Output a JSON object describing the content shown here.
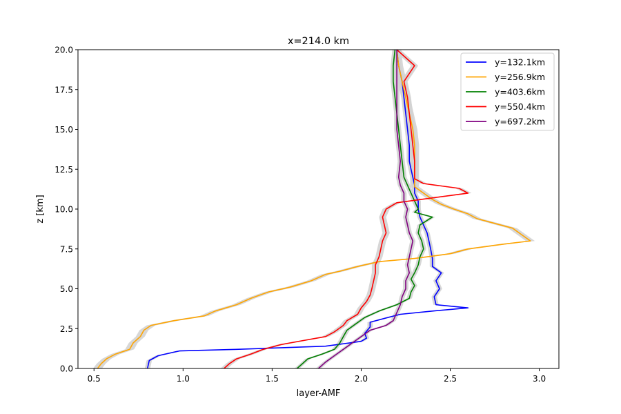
{
  "chart_data": {
    "type": "line",
    "title": "x=214.0 km",
    "xlabel": "layer-AMF",
    "ylabel": "z [km]",
    "xlim": [
      0.41,
      3.11
    ],
    "ylim": [
      0,
      20
    ],
    "xticks": [
      "0.5",
      "1.0",
      "1.5",
      "2.0",
      "2.5",
      "3.0"
    ],
    "yticks": [
      "0.0",
      "2.5",
      "5.0",
      "7.5",
      "10.0",
      "12.5",
      "15.0",
      "17.5",
      "20.0"
    ],
    "grid": false,
    "legend_position": "top-right",
    "band_color": "#d3d3d3",
    "series": [
      {
        "name": "y=132.1km",
        "color": "#0000ff",
        "points": [
          [
            0.8,
            0.0
          ],
          [
            0.81,
            0.5
          ],
          [
            0.86,
            0.8
          ],
          [
            0.98,
            1.1
          ],
          [
            1.3,
            1.2
          ],
          [
            1.8,
            1.4
          ],
          [
            2.0,
            1.7
          ],
          [
            2.03,
            1.9
          ],
          [
            2.02,
            2.2
          ],
          [
            2.05,
            2.6
          ],
          [
            2.05,
            2.9
          ],
          [
            2.15,
            3.2
          ],
          [
            2.22,
            3.4
          ],
          [
            2.4,
            3.6
          ],
          [
            2.6,
            3.8
          ],
          [
            2.42,
            4.0
          ],
          [
            2.41,
            4.5
          ],
          [
            2.44,
            5.0
          ],
          [
            2.42,
            5.5
          ],
          [
            2.45,
            6.0
          ],
          [
            2.4,
            6.4
          ],
          [
            2.4,
            6.9
          ],
          [
            2.39,
            7.5
          ],
          [
            2.38,
            8.0
          ],
          [
            2.37,
            8.5
          ],
          [
            2.35,
            9.0
          ],
          [
            2.33,
            9.5
          ],
          [
            2.32,
            10.0
          ],
          [
            2.32,
            10.5
          ],
          [
            2.3,
            11.0
          ],
          [
            2.3,
            11.5
          ],
          [
            2.29,
            12.0
          ],
          [
            2.28,
            12.5
          ],
          [
            2.27,
            13.0
          ],
          [
            2.27,
            14.0
          ],
          [
            2.26,
            15.0
          ],
          [
            2.25,
            16.0
          ],
          [
            2.24,
            17.0
          ],
          [
            2.23,
            18.0
          ],
          [
            2.21,
            19.0
          ],
          [
            2.2,
            20.0
          ]
        ],
        "band": 0.015
      },
      {
        "name": "y=256.9km",
        "color": "#ffa500",
        "points": [
          [
            0.52,
            0.0
          ],
          [
            0.54,
            0.3
          ],
          [
            0.57,
            0.6
          ],
          [
            0.62,
            0.9
          ],
          [
            0.7,
            1.2
          ],
          [
            0.72,
            1.6
          ],
          [
            0.76,
            2.0
          ],
          [
            0.78,
            2.4
          ],
          [
            0.82,
            2.7
          ],
          [
            0.95,
            3.0
          ],
          [
            1.12,
            3.3
          ],
          [
            1.18,
            3.6
          ],
          [
            1.3,
            4.0
          ],
          [
            1.38,
            4.4
          ],
          [
            1.48,
            4.8
          ],
          [
            1.6,
            5.1
          ],
          [
            1.72,
            5.5
          ],
          [
            1.8,
            5.9
          ],
          [
            1.88,
            6.1
          ],
          [
            1.98,
            6.4
          ],
          [
            2.1,
            6.7
          ],
          [
            2.3,
            6.9
          ],
          [
            2.5,
            7.2
          ],
          [
            2.6,
            7.5
          ],
          [
            2.8,
            7.8
          ],
          [
            2.95,
            8.0
          ],
          [
            2.9,
            8.4
          ],
          [
            2.85,
            8.8
          ],
          [
            2.75,
            9.1
          ],
          [
            2.65,
            9.4
          ],
          [
            2.6,
            9.7
          ],
          [
            2.52,
            10.0
          ],
          [
            2.45,
            10.3
          ],
          [
            2.4,
            10.6
          ],
          [
            2.35,
            11.0
          ],
          [
            2.3,
            11.4
          ],
          [
            2.3,
            11.7
          ],
          [
            2.3,
            12.0
          ],
          [
            2.3,
            13.0
          ],
          [
            2.3,
            14.0
          ],
          [
            2.29,
            15.0
          ],
          [
            2.27,
            16.0
          ],
          [
            2.25,
            17.0
          ],
          [
            2.23,
            18.0
          ],
          [
            2.21,
            19.0
          ],
          [
            2.2,
            20.0
          ]
        ],
        "band": 0.025
      },
      {
        "name": "y=403.6km",
        "color": "#008000",
        "points": [
          [
            1.64,
            0.0
          ],
          [
            1.67,
            0.3
          ],
          [
            1.7,
            0.6
          ],
          [
            1.78,
            0.9
          ],
          [
            1.85,
            1.2
          ],
          [
            1.88,
            1.6
          ],
          [
            1.9,
            2.0
          ],
          [
            1.92,
            2.4
          ],
          [
            1.97,
            2.8
          ],
          [
            2.02,
            3.2
          ],
          [
            2.1,
            3.6
          ],
          [
            2.2,
            4.0
          ],
          [
            2.27,
            4.4
          ],
          [
            2.28,
            4.8
          ],
          [
            2.3,
            5.2
          ],
          [
            2.28,
            5.6
          ],
          [
            2.3,
            6.0
          ],
          [
            2.32,
            6.5
          ],
          [
            2.33,
            7.0
          ],
          [
            2.35,
            7.5
          ],
          [
            2.34,
            8.0
          ],
          [
            2.32,
            8.5
          ],
          [
            2.33,
            9.0
          ],
          [
            2.4,
            9.5
          ],
          [
            2.3,
            9.8
          ],
          [
            2.32,
            10.0
          ],
          [
            2.3,
            10.5
          ],
          [
            2.28,
            11.0
          ],
          [
            2.26,
            11.5
          ],
          [
            2.24,
            12.0
          ],
          [
            2.23,
            13.0
          ],
          [
            2.22,
            14.0
          ],
          [
            2.21,
            15.0
          ],
          [
            2.2,
            16.0
          ],
          [
            2.19,
            17.0
          ],
          [
            2.18,
            18.0
          ],
          [
            2.18,
            19.0
          ],
          [
            2.19,
            20.0
          ]
        ],
        "band": 0.015
      },
      {
        "name": "y=550.4km",
        "color": "#ff0000",
        "points": [
          [
            1.23,
            0.0
          ],
          [
            1.26,
            0.3
          ],
          [
            1.3,
            0.6
          ],
          [
            1.38,
            0.9
          ],
          [
            1.45,
            1.2
          ],
          [
            1.55,
            1.5
          ],
          [
            1.7,
            1.8
          ],
          [
            1.8,
            2.0
          ],
          [
            1.85,
            2.3
          ],
          [
            1.9,
            2.7
          ],
          [
            1.92,
            3.0
          ],
          [
            1.98,
            3.4
          ],
          [
            2.0,
            3.8
          ],
          [
            2.03,
            4.2
          ],
          [
            2.05,
            4.6
          ],
          [
            2.06,
            5.0
          ],
          [
            2.07,
            5.5
          ],
          [
            2.08,
            6.0
          ],
          [
            2.08,
            6.5
          ],
          [
            2.1,
            7.0
          ],
          [
            2.11,
            7.5
          ],
          [
            2.12,
            8.0
          ],
          [
            2.14,
            8.5
          ],
          [
            2.13,
            9.0
          ],
          [
            2.12,
            9.5
          ],
          [
            2.14,
            10.0
          ],
          [
            2.2,
            10.4
          ],
          [
            2.4,
            10.7
          ],
          [
            2.6,
            11.0
          ],
          [
            2.55,
            11.3
          ],
          [
            2.35,
            11.6
          ],
          [
            2.3,
            11.9
          ],
          [
            2.3,
            12.5
          ],
          [
            2.3,
            13.0
          ],
          [
            2.29,
            14.0
          ],
          [
            2.28,
            15.0
          ],
          [
            2.27,
            16.0
          ],
          [
            2.26,
            17.0
          ],
          [
            2.24,
            18.0
          ],
          [
            2.3,
            19.0
          ],
          [
            2.2,
            20.0
          ]
        ],
        "band": 0.02
      },
      {
        "name": "y=697.2km",
        "color": "#800080",
        "points": [
          [
            1.76,
            0.0
          ],
          [
            1.8,
            0.4
          ],
          [
            1.85,
            0.8
          ],
          [
            1.9,
            1.2
          ],
          [
            1.95,
            1.6
          ],
          [
            2.0,
            2.0
          ],
          [
            2.05,
            2.4
          ],
          [
            2.14,
            2.7
          ],
          [
            2.18,
            3.0
          ],
          [
            2.2,
            3.5
          ],
          [
            2.22,
            4.0
          ],
          [
            2.23,
            4.5
          ],
          [
            2.25,
            5.0
          ],
          [
            2.25,
            5.5
          ],
          [
            2.27,
            6.0
          ],
          [
            2.26,
            6.5
          ],
          [
            2.27,
            7.0
          ],
          [
            2.28,
            7.5
          ],
          [
            2.29,
            8.0
          ],
          [
            2.27,
            8.5
          ],
          [
            2.26,
            9.0
          ],
          [
            2.25,
            9.5
          ],
          [
            2.26,
            10.0
          ],
          [
            2.24,
            10.5
          ],
          [
            2.24,
            11.0
          ],
          [
            2.22,
            11.5
          ],
          [
            2.21,
            12.0
          ],
          [
            2.22,
            13.0
          ],
          [
            2.21,
            14.0
          ],
          [
            2.2,
            15.0
          ],
          [
            2.2,
            16.0
          ],
          [
            2.2,
            17.0
          ],
          [
            2.2,
            18.0
          ],
          [
            2.2,
            19.0
          ],
          [
            2.2,
            20.0
          ]
        ],
        "band": 0.015
      }
    ]
  }
}
